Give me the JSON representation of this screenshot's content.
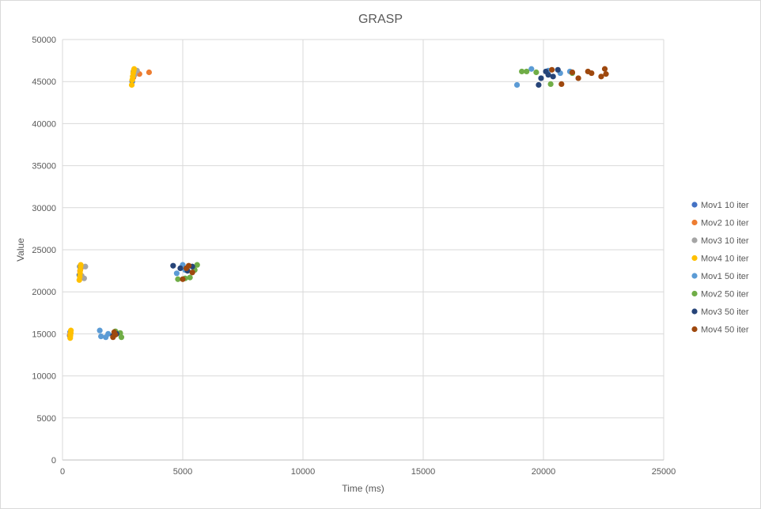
{
  "chart_data": {
    "type": "scatter",
    "title": "GRASP",
    "xlabel": "Time (ms)",
    "ylabel": "Value",
    "xlim": [
      0,
      25000
    ],
    "ylim": [
      0,
      50000
    ],
    "xticks": [
      0,
      5000,
      10000,
      15000,
      20000,
      25000
    ],
    "yticks": [
      0,
      5000,
      10000,
      15000,
      20000,
      25000,
      30000,
      35000,
      40000,
      45000,
      50000
    ],
    "grid": true,
    "legend_position": "right",
    "series": [
      {
        "name": "Mov1 10 iter",
        "color": "#4472c4",
        "points": [
          [
            300,
            14800
          ],
          [
            320,
            15200
          ],
          [
            700,
            22000
          ],
          [
            720,
            23000
          ],
          [
            2900,
            45000
          ],
          [
            2950,
            46200
          ]
        ]
      },
      {
        "name": "Mov2 10 iter",
        "color": "#ed7d31",
        "points": [
          [
            310,
            14900
          ],
          [
            340,
            15100
          ],
          [
            730,
            22500
          ],
          [
            760,
            22800
          ],
          [
            2950,
            45500
          ],
          [
            3200,
            45900
          ],
          [
            3600,
            46100
          ]
        ]
      },
      {
        "name": "Mov3 10 iter",
        "color": "#a5a5a5",
        "points": [
          [
            330,
            15000
          ],
          [
            800,
            21900
          ],
          [
            900,
            21600
          ],
          [
            950,
            23000
          ],
          [
            3000,
            45800
          ],
          [
            3100,
            46300
          ]
        ]
      },
      {
        "name": "Mov4 10 iter",
        "color": "#ffc000",
        "points": [
          [
            320,
            14500
          ],
          [
            330,
            14800
          ],
          [
            340,
            15100
          ],
          [
            350,
            15400
          ],
          [
            700,
            21400
          ],
          [
            720,
            21800
          ],
          [
            730,
            22200
          ],
          [
            740,
            22600
          ],
          [
            750,
            23000
          ],
          [
            760,
            23200
          ],
          [
            2880,
            44600
          ],
          [
            2900,
            45200
          ],
          [
            2920,
            45600
          ],
          [
            2940,
            46000
          ],
          [
            2960,
            46300
          ],
          [
            2980,
            46500
          ]
        ]
      },
      {
        "name": "Mov1 50 iter",
        "color": "#5b9bd5",
        "points": [
          [
            1550,
            15400
          ],
          [
            1600,
            14700
          ],
          [
            1800,
            14600
          ],
          [
            1900,
            15000
          ],
          [
            4750,
            22200
          ],
          [
            5000,
            23200
          ],
          [
            5100,
            22600
          ],
          [
            18900,
            44600
          ],
          [
            19500,
            46500
          ],
          [
            20200,
            46300
          ],
          [
            20700,
            46000
          ],
          [
            21100,
            46200
          ]
        ]
      },
      {
        "name": "Mov2 50 iter",
        "color": "#70ad47",
        "points": [
          [
            2200,
            15300
          ],
          [
            2400,
            15100
          ],
          [
            2450,
            14600
          ],
          [
            4800,
            21500
          ],
          [
            5100,
            21600
          ],
          [
            5300,
            21700
          ],
          [
            5500,
            22600
          ],
          [
            5600,
            23200
          ],
          [
            19100,
            46200
          ],
          [
            19300,
            46200
          ],
          [
            19700,
            46100
          ],
          [
            20300,
            44700
          ],
          [
            21200,
            46000
          ]
        ]
      },
      {
        "name": "Mov3 50 iter",
        "color": "#264478",
        "points": [
          [
            2100,
            14800
          ],
          [
            2250,
            15000
          ],
          [
            4600,
            23100
          ],
          [
            4900,
            22800
          ],
          [
            5200,
            22500
          ],
          [
            5400,
            23000
          ],
          [
            19800,
            44600
          ],
          [
            19900,
            45400
          ],
          [
            20100,
            46200
          ],
          [
            20200,
            45800
          ],
          [
            20400,
            45600
          ],
          [
            20600,
            46400
          ]
        ]
      },
      {
        "name": "Mov4 50 iter",
        "color": "#9e480e",
        "points": [
          [
            2100,
            14600
          ],
          [
            2150,
            15200
          ],
          [
            2200,
            14900
          ],
          [
            5000,
            21500
          ],
          [
            5150,
            22800
          ],
          [
            5250,
            23100
          ],
          [
            5400,
            22300
          ],
          [
            20350,
            46400
          ],
          [
            20750,
            44700
          ],
          [
            21200,
            46100
          ],
          [
            21450,
            45400
          ],
          [
            21850,
            46200
          ],
          [
            22000,
            46000
          ],
          [
            22400,
            45600
          ],
          [
            22550,
            46500
          ],
          [
            22600,
            45900
          ]
        ]
      }
    ]
  }
}
